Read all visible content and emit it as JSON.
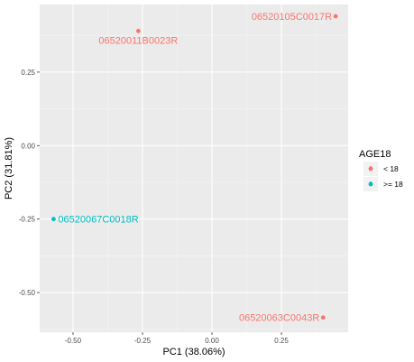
{
  "chart_data": {
    "type": "scatter",
    "title": "",
    "xlabel": "PC1 (38.06%)",
    "ylabel": "PC2 (31.81%)",
    "xlim": [
      -0.62,
      0.49
    ],
    "ylim": [
      -0.635,
      0.48
    ],
    "x_ticks": [
      -0.5,
      -0.25,
      0.0,
      0.25
    ],
    "x_tick_labels": [
      "-0.50",
      "-0.25",
      "0.00",
      "0.25"
    ],
    "y_ticks": [
      -0.5,
      -0.25,
      0.0,
      0.25
    ],
    "y_tick_labels": [
      "-0.50",
      "-0.25",
      "0.00",
      "0.25"
    ],
    "grid": true,
    "background": "#ebebeb",
    "legend": {
      "title": "AGE18",
      "placement": "right",
      "entries": [
        {
          "label": "< 18",
          "color": "#f8766d"
        },
        {
          "label": ">= 18",
          "color": "#00bfc4"
        }
      ]
    },
    "points": [
      {
        "id": "06520011B0023R",
        "x": -0.265,
        "y": 0.39,
        "group": "< 18",
        "color": "#f8766d",
        "label_anchor": "middle",
        "label_dx": 0,
        "label_dy": 14
      },
      {
        "id": "06520105C0017R",
        "x": 0.445,
        "y": 0.44,
        "group": "< 18",
        "color": "#f8766d",
        "label_anchor": "end",
        "label_dx": -4,
        "label_dy": 4
      },
      {
        "id": "06520067C0018R",
        "x": -0.57,
        "y": -0.25,
        "group": ">= 18",
        "color": "#00bfc4",
        "label_anchor": "start",
        "label_dx": 5,
        "label_dy": 4
      },
      {
        "id": "06520063C0043R",
        "x": 0.4,
        "y": -0.585,
        "group": "< 18",
        "color": "#f8766d",
        "label_anchor": "end",
        "label_dx": -4,
        "label_dy": 4
      }
    ]
  }
}
